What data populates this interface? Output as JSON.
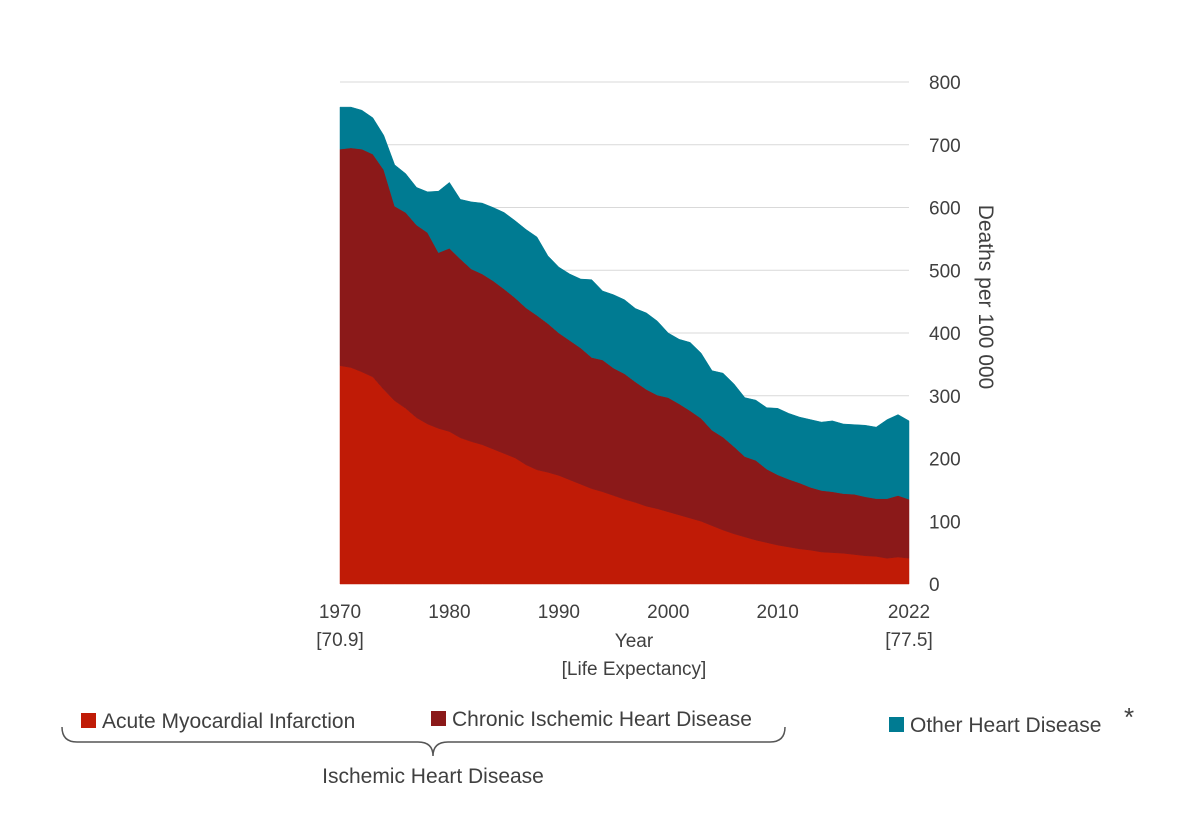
{
  "chart_data": {
    "type": "area",
    "stacked": true,
    "xlabel": "Year",
    "xlabel_sub": "[Life Expectancy]",
    "ylabel": "Deaths per 100 000",
    "ylim": [
      0,
      800
    ],
    "yticks": [
      0,
      100,
      200,
      300,
      400,
      500,
      600,
      700,
      800
    ],
    "xlim": [
      1970,
      2022
    ],
    "xticks": [
      {
        "year": 1970,
        "label": "1970",
        "sub": "[70.9]"
      },
      {
        "year": 1980,
        "label": "1980",
        "sub": ""
      },
      {
        "year": 1990,
        "label": "1990",
        "sub": ""
      },
      {
        "year": 2000,
        "label": "2000",
        "sub": ""
      },
      {
        "year": 2010,
        "label": "2010",
        "sub": ""
      },
      {
        "year": 2022,
        "label": "2022",
        "sub": "[77.5]"
      }
    ],
    "grid": "horizontal",
    "y_axis_side": "right",
    "x": [
      1970,
      1971,
      1972,
      1973,
      1974,
      1975,
      1976,
      1977,
      1978,
      1979,
      1980,
      1981,
      1982,
      1983,
      1984,
      1985,
      1986,
      1987,
      1988,
      1989,
      1990,
      1991,
      1992,
      1993,
      1994,
      1995,
      1996,
      1997,
      1998,
      1999,
      2000,
      2001,
      2002,
      2003,
      2004,
      2005,
      2006,
      2007,
      2008,
      2009,
      2010,
      2011,
      2012,
      2013,
      2014,
      2015,
      2016,
      2017,
      2018,
      2019,
      2020,
      2021,
      2022
    ],
    "series": [
      {
        "name": "Acute Myocardial Infarction",
        "color": "#c01b06",
        "values": [
          348,
          345,
          338,
          330,
          310,
          292,
          280,
          265,
          255,
          248,
          243,
          233,
          227,
          222,
          215,
          208,
          201,
          190,
          182,
          178,
          173,
          166,
          159,
          152,
          147,
          141,
          135,
          130,
          124,
          120,
          115,
          110,
          105,
          100,
          93,
          86,
          80,
          75,
          70,
          66,
          62,
          59,
          56,
          54,
          51,
          50,
          49,
          47,
          45,
          44,
          41,
          43,
          41
        ]
      },
      {
        "name": "Chronic Ischemic Heart Disease",
        "color": "#8b1919",
        "values": [
          345,
          350,
          355,
          355,
          350,
          310,
          312,
          307,
          305,
          280,
          292,
          285,
          275,
          272,
          268,
          262,
          255,
          250,
          246,
          237,
          227,
          222,
          217,
          209,
          210,
          203,
          200,
          192,
          186,
          181,
          182,
          177,
          171,
          164,
          152,
          148,
          139,
          128,
          127,
          117,
          112,
          108,
          105,
          100,
          98,
          97,
          95,
          96,
          94,
          92,
          95,
          98,
          94
        ]
      },
      {
        "name": "Other Heart Disease",
        "color": "#007b92",
        "values": [
          67,
          65,
          62,
          58,
          55,
          66,
          62,
          60,
          65,
          98,
          105,
          95,
          107,
          113,
          117,
          122,
          123,
          125,
          125,
          108,
          105,
          106,
          110,
          124,
          110,
          117,
          118,
          117,
          122,
          118,
          103,
          103,
          109,
          104,
          95,
          102,
          100,
          94,
          96,
          98,
          106,
          105,
          105,
          108,
          109,
          113,
          111,
          111,
          114,
          114,
          126,
          129,
          125
        ]
      }
    ],
    "legend": {
      "placement": "bottom",
      "group_label": "Ischemic Heart Disease",
      "note_mark": "*"
    }
  }
}
